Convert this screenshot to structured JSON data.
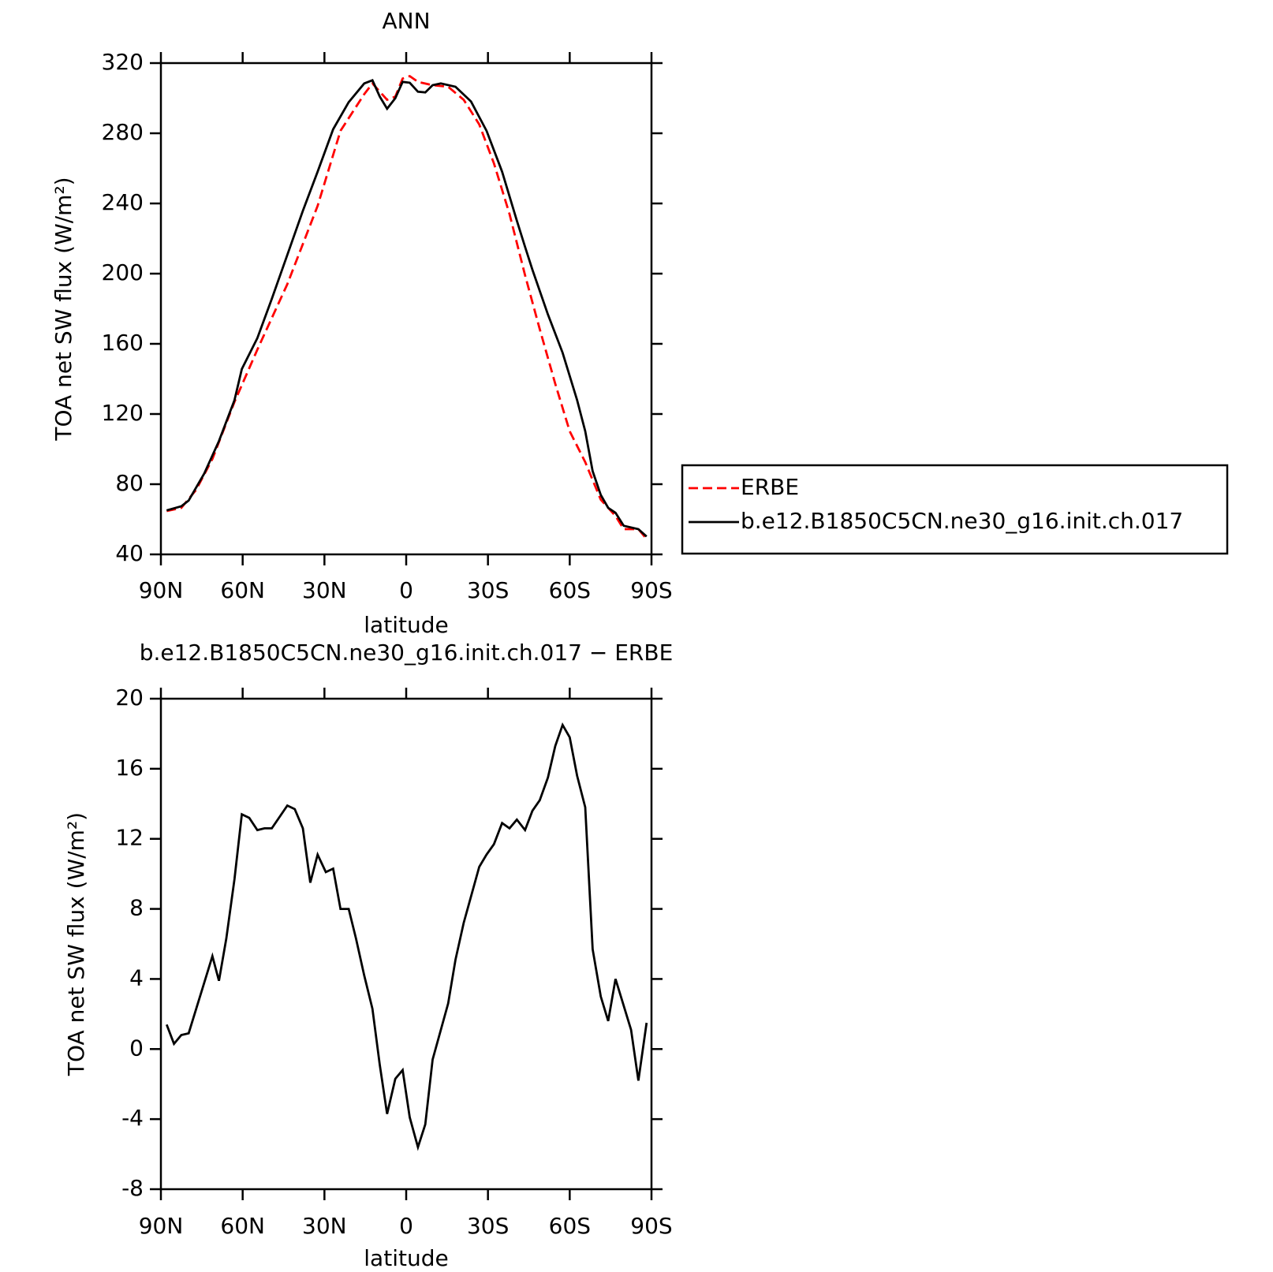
{
  "chart_data": [
    {
      "type": "line",
      "title": "ANN",
      "xlabel": "latitude",
      "ylabel": "TOA net SW flux (W/m²)",
      "xlim": [
        90,
        -90
      ],
      "xticks": [
        {
          "value": 90,
          "label": "90N"
        },
        {
          "value": 60,
          "label": "60N"
        },
        {
          "value": 30,
          "label": "30N"
        },
        0,
        {
          "value": -30,
          "label": "30S"
        },
        {
          "value": -60,
          "label": "60S"
        },
        {
          "value": -90,
          "label": "90S"
        }
      ],
      "ylim": [
        40,
        320
      ],
      "yticks": [
        40,
        80,
        120,
        160,
        200,
        240,
        280,
        320
      ],
      "series": [
        {
          "name": "ERBE",
          "color": "#ff0000",
          "dash": true,
          "x": [
            87.9,
            82.5,
            77.1,
            71.1,
            63.0,
            54.6,
            43.6,
            32.5,
            24.1,
            15.4,
            12.4,
            7.0,
            4.0,
            1.3,
            -1.3,
            -4.3,
            -9.7,
            -15.4,
            -21.1,
            -26.8,
            -32.2,
            -37.9,
            -43.6,
            -49.0,
            -54.7,
            -60.0,
            -65.7,
            -71.4,
            -76.8,
            -79.8,
            -85.2,
            -88.2
          ],
          "values": [
            64.7,
            66.5,
            76.7,
            94.4,
            126.9,
            156.7,
            194.0,
            238.6,
            281.4,
            302.3,
            308.4,
            299.1,
            300.9,
            311.2,
            312.6,
            309.3,
            307.4,
            306.5,
            299.1,
            285.1,
            262.8,
            234.0,
            199.1,
            168.4,
            137.2,
            110.2,
            92.6,
            71.2,
            61.9,
            54.4,
            54.4,
            48.8
          ]
        },
        {
          "name": "b.e12.B1850C5CN.ne30_g16.init.ch.017",
          "color": "#000000",
          "dash": false,
          "x": [
            87.9,
            82.5,
            79.8,
            74.1,
            68.7,
            63.0,
            60.3,
            54.6,
            49.3,
            43.6,
            37.9,
            32.5,
            26.8,
            21.1,
            15.4,
            12.4,
            9.7,
            7.0,
            4.0,
            1.3,
            -1.3,
            -4.3,
            -7.0,
            -9.7,
            -12.7,
            -18.1,
            -23.8,
            -29.5,
            -35.2,
            -40.6,
            -43.6,
            -46.3,
            -52.0,
            -57.4,
            -62.7,
            -65.7,
            -68.4,
            -71.4,
            -74.1,
            -76.8,
            -79.8,
            -85.2,
            -88.2
          ],
          "values": [
            65.1,
            67.4,
            70.7,
            86.0,
            104.6,
            127.9,
            145.6,
            163.3,
            185.6,
            210.7,
            235.8,
            258.1,
            282.3,
            297.7,
            308.4,
            310.2,
            300.9,
            294.0,
            300.0,
            309.3,
            308.8,
            303.7,
            303.3,
            307.4,
            308.4,
            306.5,
            298.1,
            281.4,
            258.1,
            230.2,
            215.3,
            202.3,
            176.7,
            154.9,
            127.9,
            110.2,
            87.4,
            73.9,
            66.5,
            63.7,
            56.3,
            54.4,
            50.2
          ]
        }
      ]
    },
    {
      "type": "line",
      "title": "b.e12.B1850C5CN.ne30_g16.init.ch.017 − ERBE",
      "xlabel": "latitude",
      "ylabel": "TOA net SW flux (W/m²)",
      "xlim": [
        90,
        -90
      ],
      "xticks": [
        {
          "value": 90,
          "label": "90N"
        },
        {
          "value": 60,
          "label": "60N"
        },
        {
          "value": 30,
          "label": "30N"
        },
        0,
        {
          "value": -30,
          "label": "30S"
        },
        {
          "value": -60,
          "label": "60S"
        },
        {
          "value": -90,
          "label": "90S"
        }
      ],
      "ylim": [
        -8,
        20
      ],
      "yticks": [
        -8,
        -4,
        0,
        4,
        8,
        12,
        16,
        20
      ],
      "series": [
        {
          "color": "#000000",
          "dash": false,
          "x": [
            87.9,
            85.2,
            82.5,
            79.8,
            71.1,
            68.7,
            66.0,
            63.0,
            60.3,
            57.6,
            54.6,
            52.0,
            49.3,
            43.6,
            40.9,
            37.9,
            35.2,
            32.5,
            29.5,
            26.8,
            24.1,
            21.1,
            18.4,
            15.4,
            12.4,
            9.7,
            7.0,
            4.0,
            1.3,
            -1.3,
            -4.3,
            -7.0,
            -9.7,
            -15.4,
            -18.1,
            -21.1,
            -26.8,
            -29.5,
            -32.2,
            -35.2,
            -37.9,
            -40.6,
            -43.6,
            -46.3,
            -49.0,
            -52.0,
            -54.7,
            -57.4,
            -60.0,
            -62.7,
            -65.7,
            -68.4,
            -71.4,
            -74.1,
            -76.8,
            -82.5,
            -85.2,
            -88.2
          ],
          "values": [
            1.4,
            0.3,
            0.8,
            0.9,
            5.3,
            3.9,
            6.3,
            9.7,
            13.4,
            13.2,
            12.5,
            12.6,
            12.6,
            13.9,
            13.7,
            12.6,
            9.5,
            11.1,
            10.1,
            10.3,
            8.0,
            8.0,
            6.3,
            4.2,
            2.3,
            -0.9,
            -3.7,
            -1.7,
            -1.2,
            -3.9,
            -5.6,
            -4.3,
            -0.6,
            2.6,
            5.1,
            7.2,
            10.4,
            11.1,
            11.7,
            12.9,
            12.6,
            13.1,
            12.5,
            13.6,
            14.2,
            15.5,
            17.3,
            18.5,
            17.8,
            15.6,
            13.8,
            5.7,
            3.0,
            1.6,
            4.0,
            1.1,
            -1.8,
            1.5
          ]
        }
      ]
    }
  ]
}
